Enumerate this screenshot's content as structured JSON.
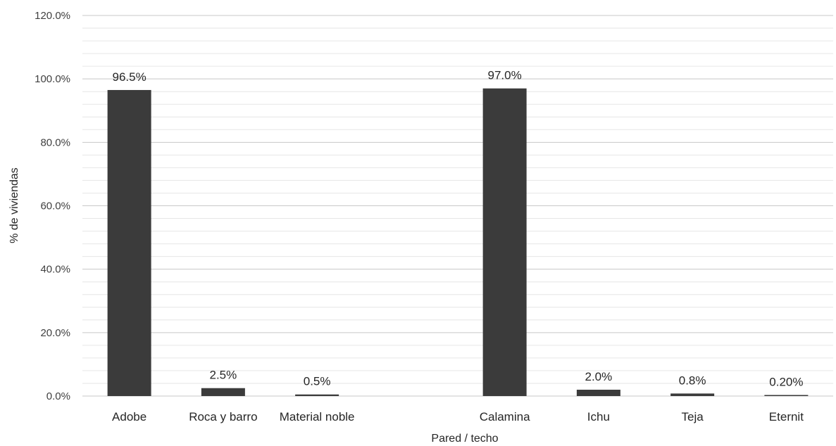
{
  "chart_data": {
    "type": "bar",
    "categories": [
      "Adobe",
      "Roca y barro",
      "Material noble",
      "",
      "Calamina",
      "Ichu",
      "Teja",
      "Eternit"
    ],
    "values": [
      96.5,
      2.5,
      0.5,
      null,
      97.0,
      2.0,
      0.8,
      0.2
    ],
    "data_labels": [
      "96.5%",
      "2.5%",
      "0.5%",
      "",
      "97.0%",
      "2.0%",
      "0.8%",
      "0.20%"
    ],
    "y_ticks": [
      "0.0%",
      "20.0%",
      "40.0%",
      "60.0%",
      "80.0%",
      "100.0%",
      "120.0%"
    ],
    "ylim": [
      0,
      120
    ],
    "major_step": 20,
    "minor_step": 4,
    "xlabel": "Pared / techo",
    "ylabel": "% de viviendas",
    "grid": true,
    "colors": {
      "bar": "#3b3b3b",
      "major_grid": "#c8c8c8",
      "minor_grid": "#e6e6e6"
    }
  }
}
